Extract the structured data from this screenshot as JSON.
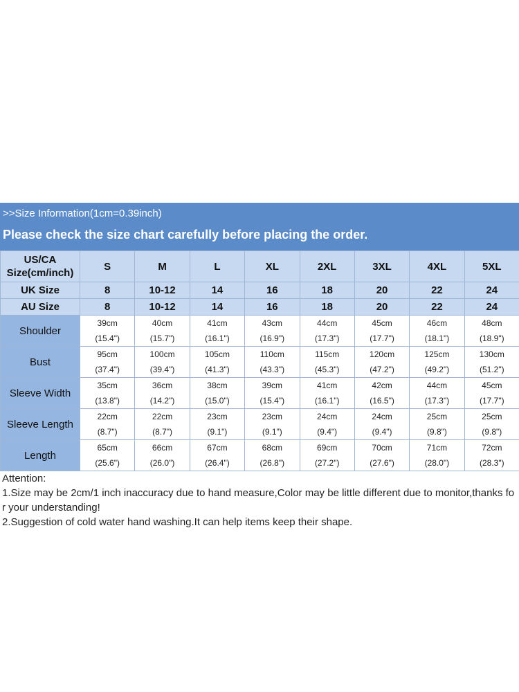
{
  "header": {
    "title": ">>Size Information(1cm=0.39inch)",
    "subtitle": "Please check the size chart carefully before placing the order."
  },
  "table": {
    "header_row": [
      "US/CA Size(cm/inch)",
      "S",
      "M",
      "L",
      "XL",
      "2XL",
      "3XL",
      "4XL",
      "5XL"
    ],
    "size_rows": [
      {
        "label": "UK Size",
        "values": [
          "8",
          "10-12",
          "14",
          "16",
          "18",
          "20",
          "22",
          "24"
        ]
      },
      {
        "label": "AU Size",
        "values": [
          "8",
          "10-12",
          "14",
          "16",
          "18",
          "20",
          "22",
          "24"
        ]
      }
    ],
    "measurements": [
      {
        "label": "Shoulder",
        "cm": [
          "39cm",
          "40cm",
          "41cm",
          "43cm",
          "44cm",
          "45cm",
          "46cm",
          "48cm"
        ],
        "inch": [
          "(15.4\")",
          "(15.7\")",
          "(16.1\")",
          "(16.9\")",
          "(17.3\")",
          "(17.7\")",
          "(18.1\")",
          "(18.9\")"
        ]
      },
      {
        "label": "Bust",
        "cm": [
          "95cm",
          "100cm",
          "105cm",
          "110cm",
          "115cm",
          "120cm",
          "125cm",
          "130cm"
        ],
        "inch": [
          "(37.4\")",
          "(39.4\")",
          "(41.3\")",
          "(43.3\")",
          "(45.3\")",
          "(47.2\")",
          "(49.2\")",
          "(51.2\")"
        ]
      },
      {
        "label": "Sleeve Width",
        "cm": [
          "35cm",
          "36cm",
          "38cm",
          "39cm",
          "41cm",
          "42cm",
          "44cm",
          "45cm"
        ],
        "inch": [
          "(13.8\")",
          "(14.2\")",
          "(15.0\")",
          "(15.4\")",
          "(16.1\")",
          "(16.5\")",
          "(17.3\")",
          "(17.7\")"
        ]
      },
      {
        "label": "Sleeve Length",
        "cm": [
          "22cm",
          "22cm",
          "23cm",
          "23cm",
          "24cm",
          "24cm",
          "25cm",
          "25cm"
        ],
        "inch": [
          "(8.7\")",
          "(8.7\")",
          "(9.1\")",
          "(9.1\")",
          "(9.4\")",
          "(9.4\")",
          "(9.8\")",
          "(9.8\")"
        ]
      },
      {
        "label": "Length",
        "cm": [
          "65cm",
          "66cm",
          "67cm",
          "68cm",
          "69cm",
          "70cm",
          "71cm",
          "72cm"
        ],
        "inch": [
          "(25.6\")",
          "(26.0\")",
          "(26.4\")",
          "(26.8\")",
          "(27.2\")",
          "(27.6\")",
          "(28.0\")",
          "(28.3\")"
        ]
      }
    ]
  },
  "notes": {
    "title": "Attention:",
    "lines": [
      "1.Size may be 2cm/1 inch inaccuracy due to hand measure,Color may be little different due to monitor,thanks for your understanding!",
      "2.Suggestion of cold water hand washing.It can help items keep their shape."
    ]
  }
}
